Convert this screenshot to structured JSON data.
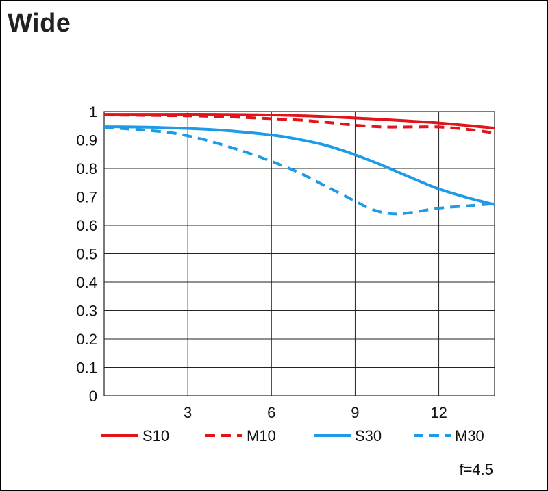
{
  "page": {
    "title": "Wide"
  },
  "chart_data": {
    "type": "line",
    "title": "",
    "xlabel": "",
    "ylabel": "",
    "xlim": [
      0,
      14
    ],
    "ylim": [
      0,
      1
    ],
    "xticks": [
      3,
      6,
      9,
      12
    ],
    "yticks": [
      0,
      0.1,
      0.2,
      0.3,
      0.4,
      0.5,
      0.6,
      0.7,
      0.8,
      0.9,
      1
    ],
    "ytick_labels": [
      "0",
      "0.1",
      "0.2",
      "0.3",
      "0.4",
      "0.5",
      "0.6",
      "0.7",
      "0.8",
      "0.9",
      "1"
    ],
    "grid": true,
    "legend_position": "bottom",
    "annotation": "f=4.5",
    "series": [
      {
        "name": "S10",
        "color": "#e1141c",
        "style": "solid",
        "x": [
          0,
          2,
          4,
          6,
          8,
          10,
          12,
          14
        ],
        "y": [
          0.99,
          0.99,
          0.99,
          0.988,
          0.982,
          0.972,
          0.96,
          0.942
        ]
      },
      {
        "name": "M10",
        "color": "#e1141c",
        "style": "dashed",
        "x": [
          0,
          2,
          4,
          6,
          7,
          8,
          9,
          10,
          11,
          12,
          13,
          14
        ],
        "y": [
          0.988,
          0.986,
          0.983,
          0.975,
          0.97,
          0.962,
          0.952,
          0.946,
          0.946,
          0.946,
          0.938,
          0.925
        ]
      },
      {
        "name": "S30",
        "color": "#1e9be6",
        "style": "solid",
        "x": [
          0,
          2,
          4,
          6,
          7,
          8,
          9,
          10,
          11,
          12,
          13,
          14
        ],
        "y": [
          0.947,
          0.944,
          0.936,
          0.918,
          0.902,
          0.88,
          0.848,
          0.81,
          0.768,
          0.728,
          0.698,
          0.673
        ]
      },
      {
        "name": "M30",
        "color": "#1e9be6",
        "style": "dashed",
        "x": [
          0,
          2,
          3,
          4,
          5,
          6,
          7,
          8,
          9,
          9.5,
          10,
          10.5,
          11,
          12,
          13,
          14
        ],
        "y": [
          0.945,
          0.93,
          0.915,
          0.89,
          0.86,
          0.825,
          0.785,
          0.735,
          0.685,
          0.66,
          0.645,
          0.64,
          0.645,
          0.66,
          0.668,
          0.676
        ]
      }
    ]
  }
}
